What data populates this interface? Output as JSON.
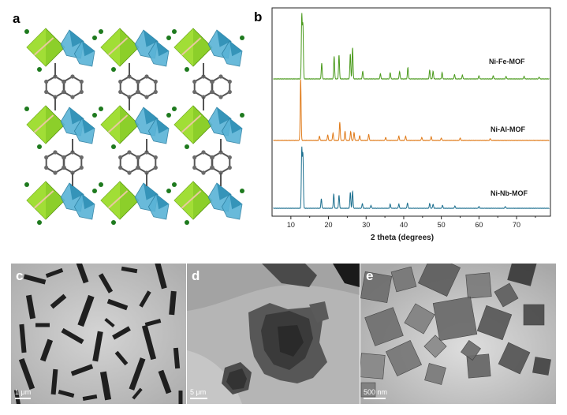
{
  "figure": {
    "panels": {
      "a": {
        "letter": "a"
      },
      "b": {
        "letter": "b"
      },
      "c": {
        "letter": "c",
        "scale_bar": "1 μm"
      },
      "d": {
        "letter": "d",
        "scale_bar": "5 μm"
      },
      "e": {
        "letter": "e",
        "scale_bar": "500 nm"
      }
    }
  },
  "chart_data": {
    "type": "line",
    "xlabel": "2 theta (degrees)",
    "ylabel": "",
    "xlim": [
      5,
      79
    ],
    "x_ticks": [
      10,
      20,
      30,
      40,
      50,
      60,
      70
    ],
    "grid": false,
    "series": [
      {
        "name": "Ni-Fe-MOF",
        "color": "#4a9a1c",
        "peaks": [
          [
            12.9,
            1.0
          ],
          [
            13.2,
            0.85
          ],
          [
            18.2,
            0.25
          ],
          [
            21.5,
            0.36
          ],
          [
            22.8,
            0.38
          ],
          [
            25.8,
            0.4
          ],
          [
            26.4,
            0.5
          ],
          [
            29.1,
            0.12
          ],
          [
            33.8,
            0.08
          ],
          [
            36.4,
            0.1
          ],
          [
            38.9,
            0.12
          ],
          [
            41.1,
            0.18
          ],
          [
            46.9,
            0.14
          ],
          [
            47.8,
            0.12
          ],
          [
            50.2,
            0.1
          ],
          [
            53.5,
            0.07
          ],
          [
            55.6,
            0.06
          ],
          [
            60.0,
            0.05
          ],
          [
            63.8,
            0.05
          ],
          [
            67.2,
            0.04
          ],
          [
            72.0,
            0.04
          ],
          [
            76.0,
            0.03
          ]
        ]
      },
      {
        "name": "Ni-Al-MOF",
        "color": "#e07b1a",
        "peaks": [
          [
            12.6,
            1.0
          ],
          [
            17.6,
            0.07
          ],
          [
            19.8,
            0.09
          ],
          [
            21.2,
            0.12
          ],
          [
            23.0,
            0.3
          ],
          [
            24.4,
            0.15
          ],
          [
            25.9,
            0.15
          ],
          [
            26.8,
            0.13
          ],
          [
            28.3,
            0.08
          ],
          [
            30.7,
            0.1
          ],
          [
            35.2,
            0.05
          ],
          [
            38.7,
            0.07
          ],
          [
            40.5,
            0.07
          ],
          [
            44.8,
            0.05
          ],
          [
            47.3,
            0.06
          ],
          [
            50.0,
            0.04
          ],
          [
            55.0,
            0.04
          ],
          [
            63.0,
            0.03
          ]
        ]
      },
      {
        "name": "Ni-Nb-MOF",
        "color": "#1c6f8f",
        "peaks": [
          [
            12.9,
            1.0
          ],
          [
            13.2,
            0.9
          ],
          [
            18.1,
            0.16
          ],
          [
            21.4,
            0.24
          ],
          [
            22.8,
            0.22
          ],
          [
            25.8,
            0.27
          ],
          [
            26.4,
            0.29
          ],
          [
            29.0,
            0.08
          ],
          [
            31.3,
            0.05
          ],
          [
            36.4,
            0.07
          ],
          [
            38.7,
            0.07
          ],
          [
            41.0,
            0.09
          ],
          [
            46.9,
            0.08
          ],
          [
            47.8,
            0.07
          ],
          [
            50.3,
            0.05
          ],
          [
            53.6,
            0.04
          ],
          [
            60.0,
            0.03
          ],
          [
            67.0,
            0.03
          ]
        ]
      }
    ]
  }
}
